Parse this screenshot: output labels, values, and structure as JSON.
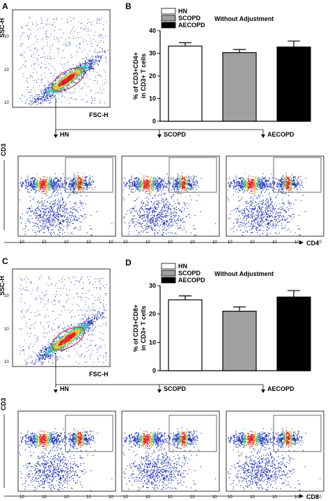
{
  "panels": {
    "A": {
      "letter": "A",
      "y_axis_label": "SSC-H",
      "x_axis_label": "FSC-H",
      "ticks": [
        "10",
        "4",
        "10",
        "3",
        "10",
        "2",
        "10",
        "4"
      ]
    },
    "C": {
      "letter": "C",
      "y_axis_label": "SSC-H",
      "x_axis_label": "FSC-H"
    },
    "flow_row_1": {
      "y_axis_label": "CD3",
      "x_axis_label": "CD4",
      "groups": [
        "HN",
        "SCOPD",
        "AECOPD"
      ]
    },
    "flow_row_2": {
      "y_axis_label": "CD3",
      "x_axis_label": "CD8",
      "groups": [
        "HN",
        "SCOPD",
        "AECOPD"
      ]
    }
  },
  "chart_data": [
    {
      "panel": "B",
      "type": "bar",
      "categories": [
        "HN",
        "SCOPD",
        "AECOPD"
      ],
      "values": [
        33.2,
        30.3,
        32.8
      ],
      "errors": [
        1.5,
        1.4,
        2.6
      ],
      "colors": [
        "#ffffff",
        "#a0a0a0",
        "#000000"
      ],
      "legend": [
        "HN",
        "SCOPD",
        "AECOPD"
      ],
      "annotation": "Without Adjustment",
      "ylabel_line1": "% of CD3+CD4+",
      "ylabel_line2": "in CD3+ T cells",
      "ylim": [
        0,
        40
      ],
      "yticks": [
        "0",
        "10",
        "20",
        "30",
        "40"
      ],
      "legend_placement": "top-left"
    },
    {
      "panel": "D",
      "type": "bar",
      "categories": [
        "HN",
        "SCOPD",
        "AECOPD"
      ],
      "values": [
        25.0,
        21.0,
        26.0
      ],
      "errors": [
        1.4,
        1.5,
        2.3
      ],
      "colors": [
        "#ffffff",
        "#a0a0a0",
        "#000000"
      ],
      "legend": [
        "HN",
        "SCOPD",
        "AECOPD"
      ],
      "annotation": "Without Adjustment",
      "ylabel_line1": "% of CD3+CD8+",
      "ylabel_line2": "in CD3+ T cells",
      "ylim": [
        0,
        30
      ],
      "yticks": [
        "0",
        "10",
        "20",
        "30"
      ],
      "legend_placement": "top-left"
    }
  ]
}
